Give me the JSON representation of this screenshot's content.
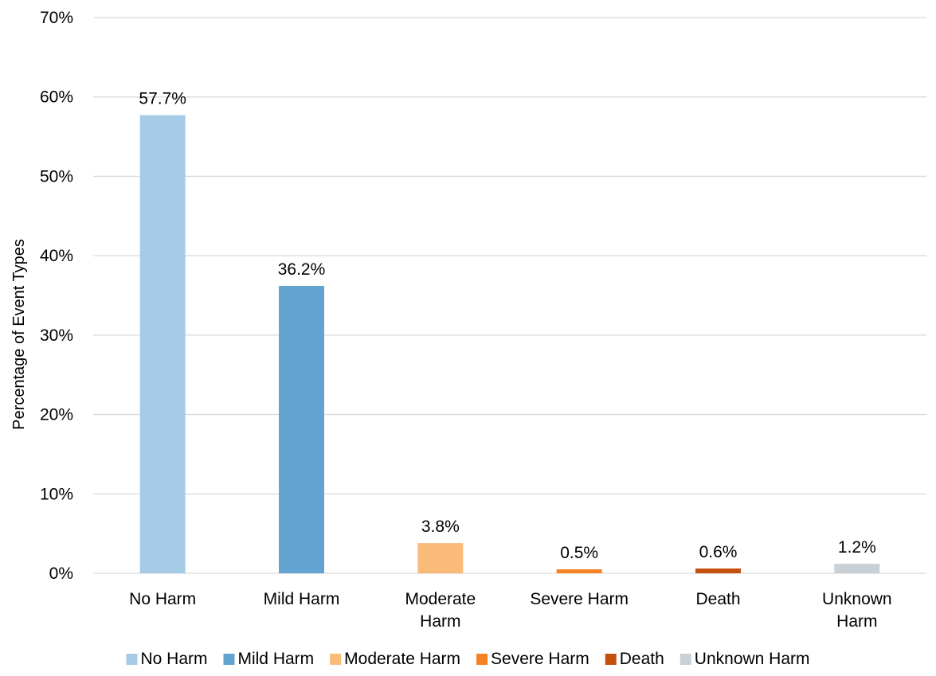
{
  "chart_data": {
    "type": "bar",
    "title": "",
    "xlabel": "",
    "ylabel": "Percentage of Event Types",
    "categories": [
      [
        "No Harm"
      ],
      [
        "Mild Harm"
      ],
      [
        "Moderate",
        "Harm"
      ],
      [
        "Severe Harm"
      ],
      [
        "Death"
      ],
      [
        "Unknown",
        "Harm"
      ]
    ],
    "series_names": [
      "No Harm",
      "Mild Harm",
      "Moderate Harm",
      "Severe Harm",
      "Death",
      "Unknown Harm"
    ],
    "values": [
      57.7,
      36.2,
      3.8,
      0.5,
      0.6,
      1.2
    ],
    "value_labels": [
      "57.7%",
      "36.2%",
      "3.8%",
      "0.5%",
      "0.6%",
      "1.2%"
    ],
    "colors": [
      "#a6cbe6",
      "#62a3cf",
      "#fbbb78",
      "#f58322",
      "#c4500e",
      "#c8d0d8"
    ],
    "ylim": [
      0,
      70
    ],
    "yticks": [
      0,
      10,
      20,
      30,
      40,
      50,
      60,
      70
    ],
    "ytick_labels": [
      "0%",
      "10%",
      "20%",
      "30%",
      "40%",
      "50%",
      "60%",
      "70%"
    ],
    "grid": true,
    "legend_position": "bottom"
  }
}
